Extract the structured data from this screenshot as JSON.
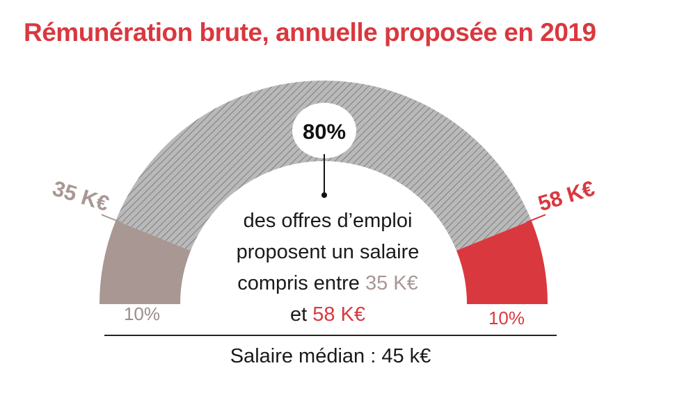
{
  "chart_data": {
    "type": "gauge",
    "title": "Rémunération brute, annuelle proposée en 2019",
    "segments": [
      {
        "label": "10%",
        "share": 10,
        "color": "#a89793"
      },
      {
        "label": "80%",
        "share": 80,
        "color": "#a8a8a8"
      },
      {
        "label": "10%",
        "share": 10,
        "color": "#d9383f"
      }
    ],
    "thresholds": [
      {
        "label": "35 K€",
        "value_keur": 35,
        "color": "#a89793"
      },
      {
        "label": "58 K€",
        "value_keur": 58,
        "color": "#d9383f"
      }
    ],
    "central_label": "80%",
    "description": {
      "line1": "des offres d’emploi",
      "line2": "proposent un salaire",
      "line3_prefix": "compris entre ",
      "line3_value": "35 K€",
      "line4_prefix": "et ",
      "line4_value": "58 K€"
    },
    "median_label": "Salaire médian : 45 k€"
  }
}
